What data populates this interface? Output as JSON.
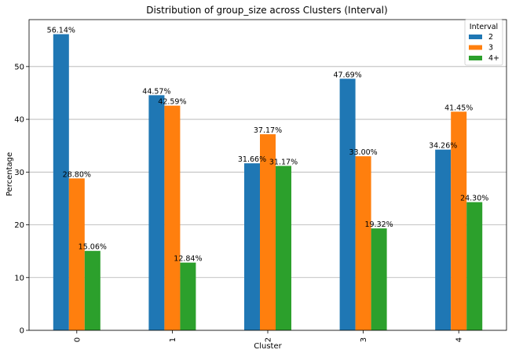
{
  "chart_data": {
    "type": "bar",
    "title": "Distribution of group_size across Clusters (Interval)",
    "xlabel": "Cluster",
    "ylabel": "Percentage",
    "categories": [
      "0",
      "1",
      "2",
      "3",
      "4"
    ],
    "yticks": [
      "0",
      "10",
      "20",
      "30",
      "40",
      "50"
    ],
    "ylim": [
      0,
      58.9
    ],
    "grid": "horizontal",
    "legend": {
      "title": "Interval",
      "placement": "top-right"
    },
    "series": [
      {
        "name": "2",
        "color": "#1f77b4",
        "values": [
          56.14,
          44.57,
          31.66,
          47.69,
          34.26
        ],
        "labels": [
          "56.14%",
          "44.57%",
          "31.66%",
          "47.69%",
          "34.26%"
        ]
      },
      {
        "name": "3",
        "color": "#ff7f0e",
        "values": [
          28.8,
          42.59,
          37.17,
          33.0,
          41.45
        ],
        "labels": [
          "28.80%",
          "42.59%",
          "37.17%",
          "33.00%",
          "41.45%"
        ]
      },
      {
        "name": "4+",
        "color": "#2ca02c",
        "values": [
          15.06,
          12.84,
          31.17,
          19.32,
          24.3
        ],
        "labels": [
          "15.06%",
          "12.84%",
          "31.17%",
          "19.32%",
          "24.30%"
        ]
      }
    ]
  }
}
